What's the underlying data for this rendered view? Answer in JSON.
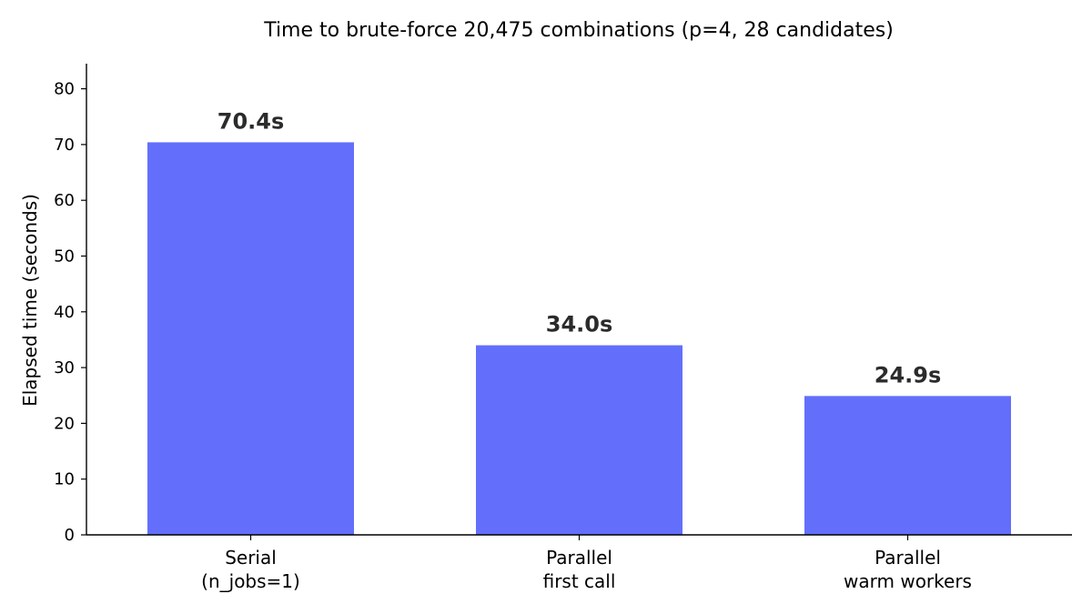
{
  "chart_data": {
    "type": "bar",
    "title": "Time to brute-force 20,475 combinations (p=4, 28 candidates)",
    "xlabel": "",
    "ylabel": "Elapsed time (seconds)",
    "categories": [
      [
        "Serial",
        "(n_jobs=1)"
      ],
      [
        "Parallel",
        "first call"
      ],
      [
        "Parallel",
        "warm workers"
      ]
    ],
    "values": [
      70.4,
      34.0,
      24.9
    ],
    "data_labels": [
      "70.4s",
      "34.0s",
      "24.9s"
    ],
    "ylim": [
      0,
      84.5
    ],
    "yticks": [
      0,
      10,
      20,
      30,
      40,
      50,
      60,
      70,
      80
    ],
    "grid": false,
    "bar_color": "#636ffb",
    "axis_color": "#000000"
  }
}
